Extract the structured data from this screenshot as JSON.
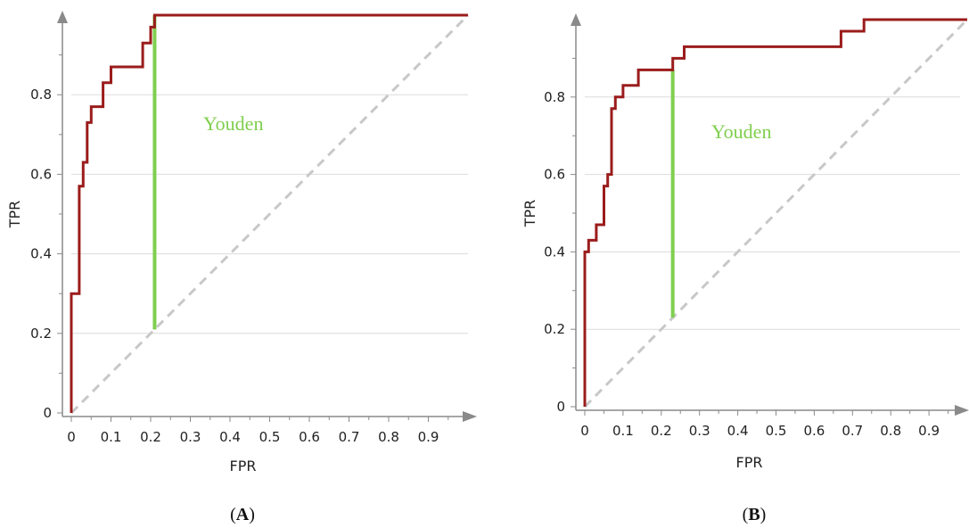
{
  "colors": {
    "roc": "#9b1c1c",
    "youden": "#7fcf4f",
    "diagonal": "#c8c8c8",
    "grid": "#dcdcdc",
    "axis": "#8a8a8a"
  },
  "chart_data": [
    {
      "type": "line",
      "panel_label": "A",
      "xlabel": "FPR",
      "ylabel": "TPR",
      "xlim": [
        0,
        1
      ],
      "ylim": [
        0,
        1
      ],
      "xticks": [
        "0",
        "0.1",
        "0.2",
        "0.3",
        "0.4",
        "0.5",
        "0.6",
        "0.7",
        "0.8",
        "0.9"
      ],
      "yticks": [
        "0",
        "0.2",
        "0.4",
        "0.6",
        "0.8"
      ],
      "grid": true,
      "roc": {
        "x": [
          0,
          0,
          0.02,
          0.02,
          0.03,
          0.03,
          0.04,
          0.04,
          0.05,
          0.05,
          0.06,
          0.06,
          0.08,
          0.08,
          0.1,
          0.1,
          0.18,
          0.18,
          0.2,
          0.2,
          0.21,
          0.21,
          1.0
        ],
        "y": [
          0,
          0.3,
          0.3,
          0.57,
          0.57,
          0.63,
          0.63,
          0.73,
          0.73,
          0.77,
          0.77,
          0.77,
          0.77,
          0.83,
          0.83,
          0.87,
          0.87,
          0.93,
          0.93,
          0.97,
          0.97,
          1.0,
          1.0
        ]
      },
      "youden": {
        "x": 0.21,
        "y1": 0.21,
        "y2": 1.0,
        "label": "Youden"
      }
    },
    {
      "type": "line",
      "panel_label": "B",
      "xlabel": "FPR",
      "ylabel": "TPR",
      "xlim": [
        0,
        1
      ],
      "ylim": [
        0,
        1
      ],
      "xticks": [
        "0",
        "0.1",
        "0.2",
        "0.3",
        "0.4",
        "0.5",
        "0.6",
        "0.7",
        "0.8",
        "0.9"
      ],
      "yticks": [
        "0",
        "0.2",
        "0.4",
        "0.6",
        "0.8"
      ],
      "grid": true,
      "roc": {
        "x": [
          0,
          0,
          0.01,
          0.01,
          0.03,
          0.03,
          0.05,
          0.05,
          0.06,
          0.06,
          0.07,
          0.07,
          0.08,
          0.08,
          0.1,
          0.1,
          0.14,
          0.14,
          0.23,
          0.23,
          0.26,
          0.26,
          0.67,
          0.67,
          0.73,
          0.73,
          1.0
        ],
        "y": [
          0,
          0.4,
          0.4,
          0.43,
          0.43,
          0.47,
          0.47,
          0.57,
          0.57,
          0.6,
          0.6,
          0.77,
          0.77,
          0.8,
          0.8,
          0.83,
          0.83,
          0.87,
          0.87,
          0.9,
          0.9,
          0.93,
          0.93,
          0.97,
          0.97,
          1.0,
          1.0
        ]
      },
      "youden": {
        "x": 0.23,
        "y1": 0.23,
        "y2": 0.87,
        "label": "Youden"
      }
    }
  ]
}
